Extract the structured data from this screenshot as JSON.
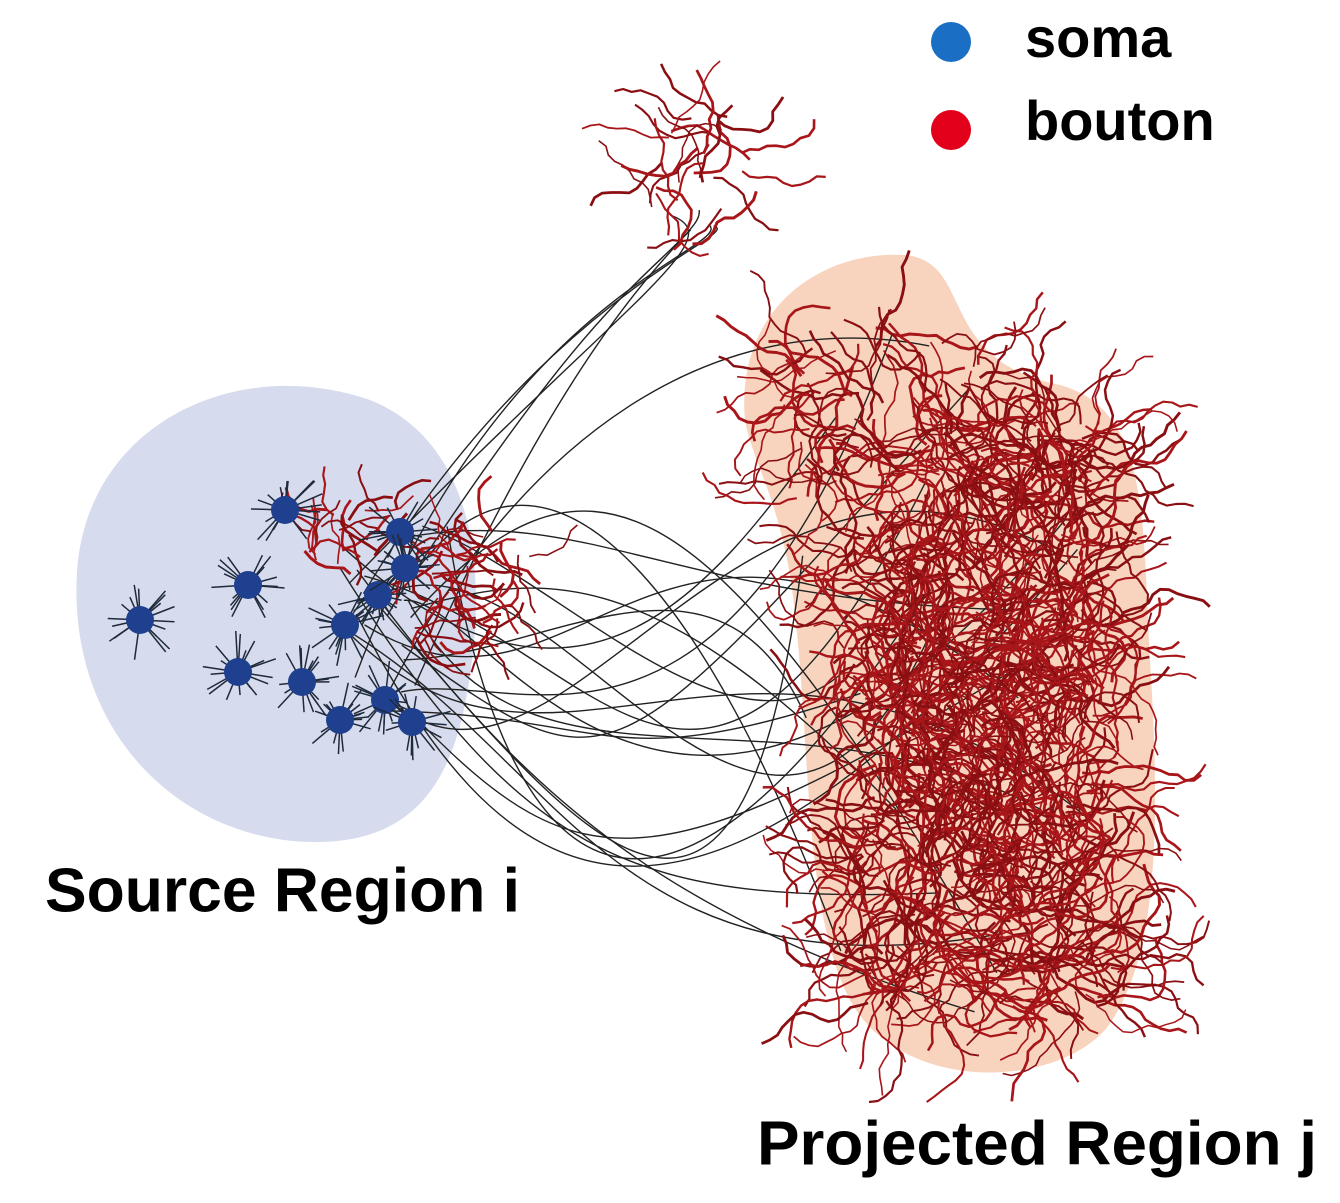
{
  "legend": {
    "items": [
      {
        "label": "soma"
      },
      {
        "label": "bouton"
      }
    ]
  },
  "labels": {
    "source": "Source Region i",
    "projected": "Projected Region j"
  }
}
